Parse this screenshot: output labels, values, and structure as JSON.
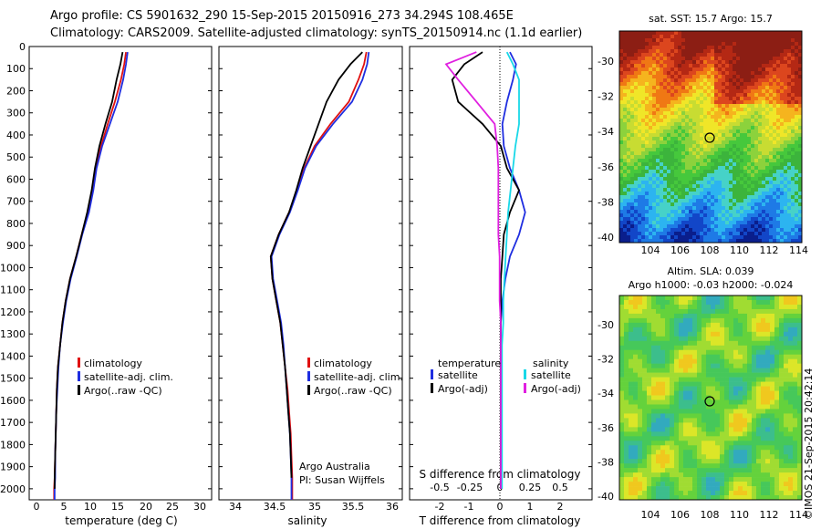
{
  "header": {
    "line1": "Argo profile: CS 5901632_290 15-Sep-2015 20150916_273 34.294S 108.465E",
    "line2": "Climatology: CARS2009. Satellite-adjusted climatology: synTS_20150914.nc (1.1d earlier)"
  },
  "colors": {
    "climatology": "#e01010",
    "satellite": "#1f2ee0",
    "argo": "#000000",
    "sal_satellite": "#18d8e8",
    "sal_argo": "#e020e0"
  },
  "depth_ticks": [
    "0",
    "100",
    "200",
    "300",
    "400",
    "500",
    "600",
    "700",
    "800",
    "900",
    "1000",
    "1100",
    "1200",
    "1300",
    "1400",
    "1500",
    "1600",
    "1700",
    "1800",
    "1900",
    "2000"
  ],
  "panels": {
    "temp": {
      "xlabel": "temperature (deg C)",
      "ticks": [
        "0",
        "5",
        "10",
        "15",
        "20",
        "25",
        "30"
      ],
      "legend": [
        "climatology",
        "satellite-adj. clim.",
        "Argo(..raw -QC)"
      ]
    },
    "sal": {
      "xlabel": "salinity",
      "ticks": [
        "34",
        "34.5",
        "35",
        "35.5",
        "36"
      ],
      "legend": [
        "climatology",
        "satellite-adj. clim.",
        "Argo(..raw -QC)"
      ],
      "credit1": "Argo Australia",
      "credit2": "PI: Susan Wijffels"
    },
    "diff": {
      "xlabel": "T difference from climatology",
      "xlabel_top": "S difference from climatology",
      "ticks_t": [
        "-2",
        "-1",
        "0",
        "1",
        "2"
      ],
      "ticks_s": [
        "-0.5",
        "-0.25",
        "0",
        "0.25",
        "0.5"
      ],
      "legend_t_head": "temperature",
      "legend_t": [
        "satellite",
        "Argo(-adj)"
      ],
      "legend_s_head": "salinity",
      "legend_s": [
        "satellite",
        "Argo(-adj)"
      ]
    }
  },
  "maps": {
    "sst_title": "sat. SST: 15.7  Argo: 15.7",
    "sla_title1": "Altim. SLA: 0.039",
    "sla_title2": "Argo h1000: -0.03 h2000: -0.024",
    "lon_ticks": [
      "104",
      "106",
      "108",
      "110",
      "112",
      "114"
    ],
    "lat_ticks": [
      "-30",
      "-32",
      "-34",
      "-36",
      "-38",
      "-40"
    ]
  },
  "stamp": "©IMOS 21-Sep-2015 20:42:14",
  "chart_data": [
    {
      "type": "line",
      "panel": "temperature profile",
      "xlabel": "temperature (deg C)",
      "ylabel": "",
      "xlim": [
        -2,
        31
      ],
      "ylim": [
        2050,
        0
      ],
      "series": [
        {
          "name": "climatology",
          "x": [
            15.5,
            15.2,
            14.6,
            13.5,
            12.2,
            11.0,
            10.0,
            9.4,
            8.6,
            7.5,
            6.5,
            5.4,
            4.6,
            4.0,
            3.6,
            3.2,
            3.0,
            2.9,
            2.8,
            2.7,
            2.6,
            2.5,
            2.5
          ],
          "y": [
            25,
            80,
            150,
            250,
            350,
            450,
            550,
            650,
            750,
            850,
            950,
            1050,
            1150,
            1250,
            1350,
            1450,
            1550,
            1650,
            1750,
            1850,
            1950,
            2000,
            2050
          ]
        },
        {
          "name": "satellite-adj. clim.",
          "x": [
            15.8,
            15.5,
            15.0,
            14.0,
            12.6,
            11.2,
            10.2,
            9.6,
            8.8,
            7.6,
            6.6,
            5.5,
            4.7,
            4.1,
            3.6,
            3.3,
            3.1,
            2.9,
            2.8,
            2.7,
            2.7,
            2.6,
            2.6
          ],
          "y": [
            25,
            80,
            150,
            250,
            350,
            450,
            550,
            650,
            750,
            850,
            950,
            1050,
            1150,
            1250,
            1350,
            1450,
            1550,
            1650,
            1750,
            1850,
            1950,
            2000,
            2050
          ]
        },
        {
          "name": "Argo(..raw -QC)",
          "x": [
            14.9,
            14.5,
            13.8,
            13.0,
            11.8,
            10.7,
            9.9,
            9.3,
            8.5,
            7.5,
            6.5,
            5.4,
            4.6,
            4.0,
            3.6,
            3.2,
            3.0,
            2.9,
            2.8,
            2.7,
            2.6,
            2.6
          ],
          "y": [
            25,
            80,
            150,
            250,
            350,
            450,
            550,
            650,
            750,
            850,
            950,
            1050,
            1150,
            1250,
            1350,
            1450,
            1550,
            1650,
            1750,
            1850,
            1950,
            2000
          ]
        }
      ]
    },
    {
      "type": "line",
      "panel": "salinity profile",
      "xlabel": "salinity",
      "ylabel": "",
      "xlim": [
        33.8,
        36.1
      ],
      "ylim": [
        2050,
        0
      ],
      "series": [
        {
          "name": "climatology",
          "x": [
            35.65,
            35.62,
            35.55,
            35.43,
            35.2,
            35.0,
            34.87,
            34.78,
            34.68,
            34.55,
            34.45,
            34.47,
            34.52,
            34.57,
            34.6,
            34.63,
            34.66,
            34.68,
            34.7,
            34.71,
            34.72,
            34.72
          ],
          "y": [
            25,
            80,
            150,
            250,
            350,
            450,
            550,
            650,
            750,
            850,
            950,
            1050,
            1150,
            1250,
            1350,
            1450,
            1550,
            1650,
            1750,
            1850,
            1950,
            2050
          ]
        },
        {
          "name": "satellite-adj. clim.",
          "x": [
            35.68,
            35.66,
            35.6,
            35.47,
            35.23,
            35.02,
            34.88,
            34.79,
            34.69,
            34.56,
            34.46,
            34.48,
            34.53,
            34.58,
            34.61,
            34.63,
            34.65,
            34.67,
            34.69,
            34.7,
            34.71,
            34.71
          ],
          "y": [
            25,
            80,
            150,
            250,
            350,
            450,
            550,
            650,
            750,
            850,
            950,
            1050,
            1150,
            1250,
            1350,
            1450,
            1550,
            1650,
            1750,
            1850,
            1950,
            2050
          ]
        },
        {
          "name": "Argo(..raw -QC)",
          "x": [
            35.6,
            35.45,
            35.3,
            35.15,
            35.05,
            34.95,
            34.85,
            34.77,
            34.68,
            34.55,
            34.45,
            34.47,
            34.52,
            34.57,
            34.6,
            34.63,
            34.65,
            34.67,
            34.69,
            34.7,
            34.71
          ],
          "y": [
            25,
            80,
            150,
            250,
            350,
            450,
            550,
            650,
            750,
            850,
            950,
            1050,
            1150,
            1250,
            1350,
            1450,
            1550,
            1650,
            1750,
            1850,
            1950
          ]
        }
      ]
    },
    {
      "type": "line",
      "panel": "difference from climatology",
      "xlabel": "T difference from climatology",
      "ylabel": "",
      "xlim": [
        -3,
        3
      ],
      "ylim": [
        2050,
        0
      ],
      "series": [
        {
          "name": "temperature satellite",
          "x": [
            0.3,
            0.5,
            0.4,
            0.2,
            0.05,
            0.1,
            0.3,
            0.6,
            0.8,
            0.6,
            0.3,
            0.15,
            0.05,
            0.0,
            0.0,
            0.0,
            0.0,
            0.0,
            0.0,
            0.0
          ],
          "y": [
            25,
            80,
            150,
            250,
            350,
            450,
            550,
            650,
            750,
            850,
            950,
            1050,
            1150,
            1250,
            1350,
            1450,
            1600,
            1750,
            1900,
            2000
          ]
        },
        {
          "name": "temperature Argo(-adj)",
          "x": [
            -0.6,
            -1.2,
            -1.6,
            -1.4,
            -0.6,
            0.0,
            0.2,
            0.6,
            0.3,
            0.1,
            0.05,
            0.0,
            0.0,
            0.0,
            0.0,
            0.0,
            0.0,
            0.0,
            0.0,
            0.0
          ],
          "y": [
            25,
            80,
            150,
            250,
            350,
            450,
            550,
            650,
            750,
            850,
            950,
            1050,
            1150,
            1250,
            1350,
            1450,
            1600,
            1750,
            1900,
            2000
          ]
        },
        {
          "name": "salinity satellite",
          "x": [
            0.05,
            0.1,
            0.15,
            0.15,
            0.15,
            0.12,
            0.1,
            0.08,
            0.06,
            0.05,
            0.04,
            0.03,
            0.02,
            0.02,
            0.01,
            0.01,
            0.01,
            0.01,
            0.01,
            0.01
          ],
          "y": [
            25,
            80,
            150,
            250,
            350,
            450,
            550,
            650,
            750,
            850,
            950,
            1050,
            1150,
            1250,
            1350,
            1450,
            1600,
            1750,
            1900,
            2000
          ]
        },
        {
          "name": "salinity Argo(-adj)",
          "x": [
            -0.2,
            -0.45,
            -0.35,
            -0.2,
            -0.05,
            -0.03,
            -0.02,
            -0.02,
            -0.02,
            -0.02,
            -0.01,
            -0.01,
            -0.01,
            0.0,
            0.0,
            0.0,
            0.0,
            0.0,
            0.0,
            0.0
          ],
          "y": [
            25,
            80,
            150,
            250,
            350,
            450,
            550,
            650,
            750,
            850,
            950,
            1050,
            1150,
            1250,
            1350,
            1450,
            1600,
            1750,
            1900,
            2000
          ]
        }
      ]
    }
  ]
}
